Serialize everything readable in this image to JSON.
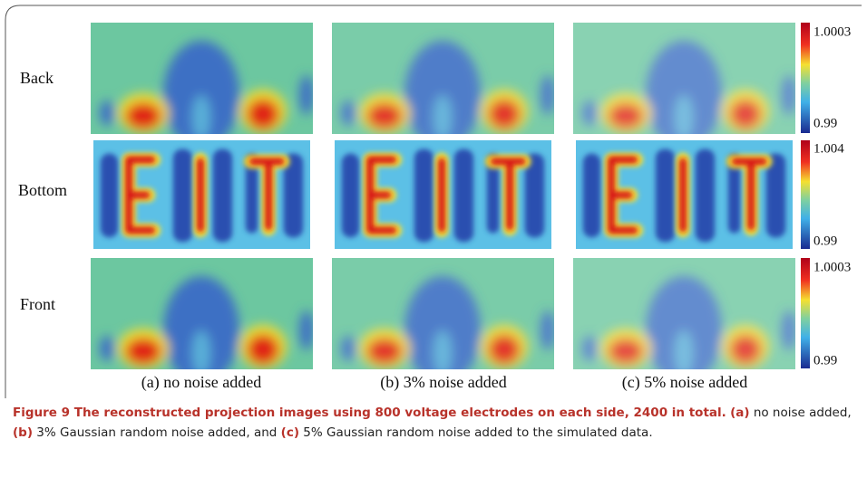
{
  "figure": {
    "row_labels": [
      "Back",
      "Bottom",
      "Front"
    ],
    "column_labels": [
      "(a) no noise added",
      "(b) 3% noise added",
      "(c) 5% noise added"
    ],
    "colorbars": [
      {
        "max": "1.0003",
        "min": "0.99"
      },
      {
        "max": "1.004",
        "min": "0.99"
      },
      {
        "max": "1.0003",
        "min": "0.99"
      }
    ]
  },
  "caption": {
    "segments": [
      {
        "text": "Figure 9 The reconstructed projection images using 800 voltage electrodes on each side, 2400 in total.",
        "bold": true
      },
      {
        "text": " ",
        "bold": false
      },
      {
        "text": "(a)",
        "bold": true
      },
      {
        "text": " no noise added, ",
        "bold": false
      },
      {
        "text": "(b)",
        "bold": true
      },
      {
        "text": " 3% Gaussian random noise added, and ",
        "bold": false
      },
      {
        "text": "(c)",
        "bold": true
      },
      {
        "text": " 5% Gaussian random noise added to the simulated data.",
        "bold": false
      }
    ]
  }
}
